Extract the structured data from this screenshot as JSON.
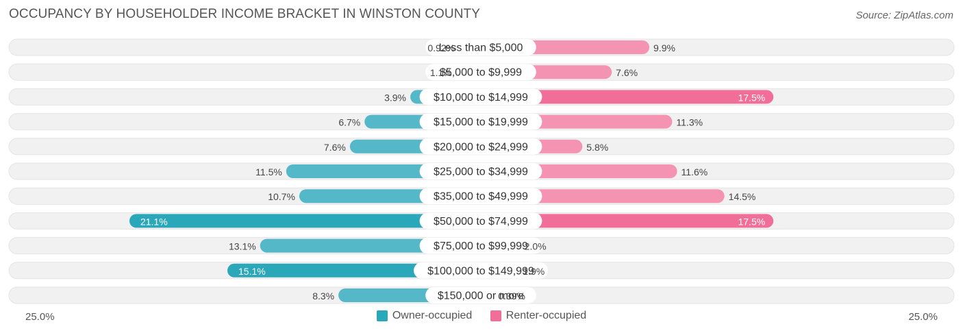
{
  "header": {
    "title": "OCCUPANCY BY HOUSEHOLDER INCOME BRACKET IN WINSTON COUNTY",
    "source": "Source: ZipAtlas.com"
  },
  "colors": {
    "owner": "#55b8c8",
    "owner_strong": "#2aa7b8",
    "renter": "#f594b2",
    "renter_strong": "#f06e98",
    "row_bg": "#f1f1f1"
  },
  "chart_data": {
    "type": "bar",
    "orientation": "horizontal-diverging",
    "title": "OCCUPANCY BY HOUSEHOLDER INCOME BRACKET IN WINSTON COUNTY",
    "categories": [
      "Less than $5,000",
      "$5,000 to $9,999",
      "$10,000 to $14,999",
      "$15,000 to $19,999",
      "$20,000 to $24,999",
      "$25,000 to $34,999",
      "$35,000 to $49,999",
      "$50,000 to $74,999",
      "$75,000 to $99,999",
      "$100,000 to $149,999",
      "$150,000 or more"
    ],
    "series": [
      {
        "name": "Owner-occupied",
        "side": "left",
        "values": [
          0.92,
          1.1,
          3.9,
          6.7,
          7.6,
          11.5,
          10.7,
          21.1,
          13.1,
          15.1,
          8.3
        ],
        "labels": [
          "0.92%",
          "1.1%",
          "3.9%",
          "6.7%",
          "7.6%",
          "11.5%",
          "10.7%",
          "21.1%",
          "13.1%",
          "15.1%",
          "8.3%"
        ]
      },
      {
        "name": "Renter-occupied",
        "side": "right",
        "values": [
          9.9,
          7.6,
          17.5,
          11.3,
          5.8,
          11.6,
          14.5,
          17.5,
          2.0,
          1.9,
          0.39
        ],
        "labels": [
          "9.9%",
          "7.6%",
          "17.5%",
          "11.3%",
          "5.8%",
          "11.6%",
          "14.5%",
          "17.5%",
          "2.0%",
          "1.9%",
          "0.39%"
        ]
      }
    ],
    "axis": {
      "max": 25.0,
      "left_label": "25.0%",
      "right_label": "25.0%"
    },
    "legend": [
      "Owner-occupied",
      "Renter-occupied"
    ]
  }
}
